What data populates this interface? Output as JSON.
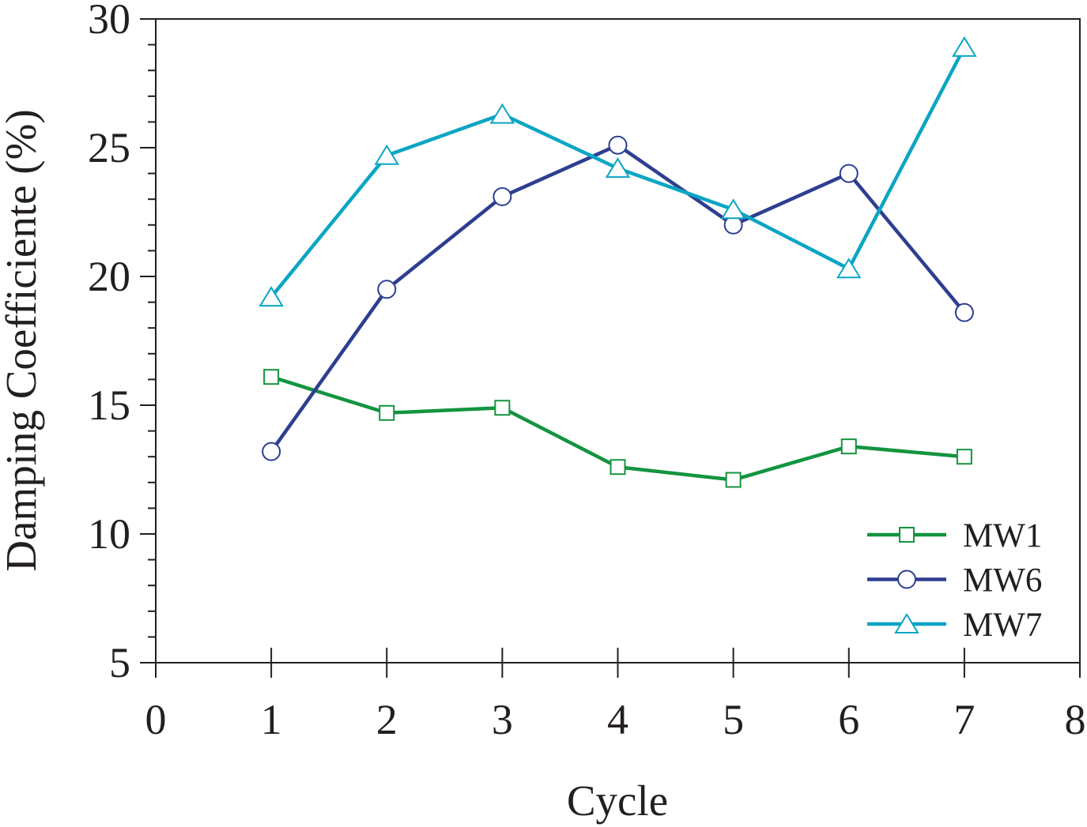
{
  "chart_data": {
    "type": "line",
    "xlabel": "Cycle",
    "ylabel": "Damping Coefficiente (%)",
    "xlim": [
      0,
      8
    ],
    "ylim": [
      5,
      30
    ],
    "x_ticks": [
      0,
      1,
      2,
      3,
      4,
      5,
      6,
      7,
      8
    ],
    "y_ticks": [
      5,
      10,
      15,
      20,
      25,
      30
    ],
    "grid": false,
    "legend_position": "bottom-right",
    "x": [
      1,
      2,
      3,
      4,
      5,
      6,
      7
    ],
    "series": [
      {
        "name": "MW1",
        "marker": "square",
        "color": "#13943f",
        "values": [
          16.1,
          14.7,
          14.9,
          12.6,
          12.1,
          13.4,
          13.0
        ]
      },
      {
        "name": "MW6",
        "marker": "circle",
        "color": "#2d3e91",
        "values": [
          13.2,
          19.5,
          23.1,
          25.1,
          22.0,
          24.0,
          18.6
        ]
      },
      {
        "name": "MW7",
        "marker": "triangle",
        "color": "#0aa5c4",
        "values": [
          19.2,
          24.7,
          26.3,
          24.2,
          22.6,
          20.3,
          28.9
        ]
      }
    ]
  }
}
